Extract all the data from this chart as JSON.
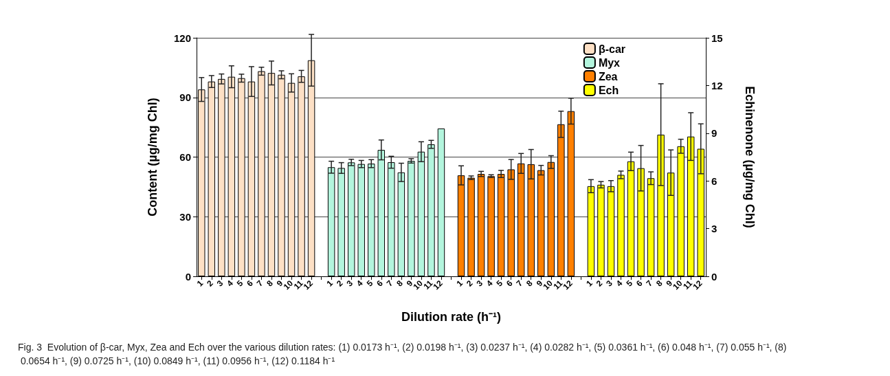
{
  "chart_data": {
    "type": "bar",
    "xlabel": "Dilution rate (h⁻¹)",
    "ylabel": "Content (µg/mg Chl)",
    "y2label": "Echinenone (µg/mg Chl)",
    "categories": [
      "1",
      "2",
      "3",
      "4",
      "5",
      "6",
      "7",
      "8",
      "9",
      "10",
      "11",
      "12",
      null,
      "1",
      "2",
      "3",
      "4",
      "5",
      "6",
      "7",
      "8",
      "9",
      "10",
      "11",
      "12",
      null,
      "1",
      "2",
      "3",
      "4",
      "5",
      "6",
      "7",
      "8",
      "9",
      "10",
      "11",
      "12",
      null,
      "1",
      "2",
      "3",
      "4",
      "5",
      "6",
      "7",
      "8",
      "9",
      "10",
      "11",
      "12"
    ],
    "series": [
      {
        "name": "β-car",
        "color": "#fde0c5",
        "values": [
          94,
          98,
          99.3,
          100.4,
          99.7,
          98,
          103.2,
          102.3,
          101.4,
          97.3,
          100.6,
          108.7,
          null,
          null,
          null,
          null,
          null,
          null,
          null,
          null,
          null,
          null,
          null,
          null,
          null,
          null,
          null,
          null,
          null,
          null,
          null,
          null,
          null,
          null,
          null,
          null,
          null,
          null,
          null,
          null,
          null,
          null,
          null,
          null,
          null,
          null,
          null,
          null,
          null,
          null,
          null
        ],
        "errors": [
          6,
          3,
          2.5,
          5.5,
          2,
          7.5,
          2,
          6,
          2,
          4.6,
          3,
          13,
          null,
          null,
          null,
          null,
          null,
          null,
          null,
          null,
          null,
          null,
          null,
          null,
          null,
          null,
          null,
          null,
          null,
          null,
          null,
          null,
          null,
          null,
          null,
          null,
          null,
          null,
          null,
          null,
          null,
          null,
          null,
          null,
          null,
          null,
          null,
          null,
          null,
          null,
          null
        ]
      },
      {
        "name": "Myx",
        "color": "#b3f5dd",
        "values": [
          null,
          null,
          null,
          null,
          null,
          null,
          null,
          null,
          null,
          null,
          null,
          null,
          null,
          54.9,
          54.5,
          57.3,
          56.5,
          56.7,
          63.6,
          57.4,
          52.3,
          58.1,
          62.7,
          66.4,
          74.4,
          null,
          null,
          null,
          null,
          null,
          null,
          null,
          null,
          null,
          null,
          null,
          null,
          null,
          null,
          null,
          null,
          null,
          null,
          null,
          null,
          null,
          null,
          null,
          null,
          null,
          null
        ],
        "errors": [
          null,
          null,
          null,
          null,
          null,
          null,
          null,
          null,
          null,
          null,
          null,
          null,
          null,
          3,
          2.7,
          1.6,
          1.8,
          2,
          5,
          3,
          4.6,
          1.1,
          5,
          2,
          null,
          null,
          null,
          null,
          null,
          null,
          null,
          null,
          null,
          null,
          null,
          null,
          null,
          null,
          null,
          null,
          null,
          null,
          null,
          null,
          null,
          null,
          null,
          null,
          null,
          null,
          null
        ]
      },
      {
        "name": "Zea",
        "color": "#ff8000",
        "values": [
          null,
          null,
          null,
          null,
          null,
          null,
          null,
          null,
          null,
          null,
          null,
          null,
          null,
          null,
          null,
          null,
          null,
          null,
          null,
          null,
          null,
          null,
          null,
          null,
          null,
          null,
          50.8,
          49.6,
          51.5,
          50.4,
          51.5,
          53.8,
          56.8,
          56.4,
          53.4,
          57.5,
          76.5,
          83.1,
          null,
          null,
          null,
          null,
          null,
          null,
          null,
          null,
          null,
          null,
          null,
          null,
          null
        ],
        "errors": [
          null,
          null,
          null,
          null,
          null,
          null,
          null,
          null,
          null,
          null,
          null,
          null,
          null,
          null,
          null,
          null,
          null,
          null,
          null,
          null,
          null,
          null,
          null,
          null,
          null,
          null,
          4.8,
          0.9,
          1.3,
          0.7,
          1.8,
          5,
          5,
          7.4,
          2.4,
          3.2,
          6.6,
          6.5,
          null,
          null,
          null,
          null,
          null,
          null,
          null,
          null,
          null,
          null,
          null,
          null,
          null
        ]
      },
      {
        "name": "Ech",
        "color": "#ffff00",
        "axis": "y2",
        "values": [
          null,
          null,
          null,
          null,
          null,
          null,
          null,
          null,
          null,
          null,
          null,
          null,
          null,
          null,
          null,
          null,
          null,
          null,
          null,
          null,
          null,
          null,
          null,
          null,
          null,
          null,
          null,
          null,
          null,
          null,
          null,
          null,
          null,
          null,
          null,
          null,
          null,
          null,
          null,
          5.67,
          5.76,
          5.67,
          6.38,
          7.23,
          6.8,
          6.17,
          8.91,
          6.52,
          8.18,
          8.79,
          8.02
        ],
        "errors": [
          null,
          null,
          null,
          null,
          null,
          null,
          null,
          null,
          null,
          null,
          null,
          null,
          null,
          null,
          null,
          null,
          null,
          null,
          null,
          null,
          null,
          null,
          null,
          null,
          null,
          null,
          null,
          null,
          null,
          null,
          null,
          null,
          null,
          null,
          null,
          null,
          null,
          null,
          null,
          0.41,
          0.2,
          0.35,
          0.24,
          0.58,
          1.43,
          0.4,
          3.2,
          1.43,
          0.44,
          1.5,
          1.57
        ]
      }
    ],
    "ylim": [
      0,
      120
    ],
    "yticks": [
      0,
      30,
      60,
      90,
      120
    ],
    "y2lim": [
      0,
      15
    ],
    "y2ticks": [
      0,
      3,
      6,
      9,
      12,
      15
    ],
    "grid": "y",
    "legend": "top right",
    "annotations": [
      "Fig. 3  Evolution of β-car, Myx, Zea and Ech over the various dilution rates: (1) 0.0173 h⁻¹, (2) 0.0198 h⁻¹, (3) 0.0237 h⁻¹, (4) 0.0282 h⁻¹, (5) 0.0361 h⁻¹, (6) 0.048 h⁻¹, (7) 0.055 h⁻¹, (8) 0.0654 h⁻¹, (9) 0.0725 h⁻¹, (10) 0.0849 h⁻¹, (11) 0.0956 h⁻¹, (12) 0.1184 h⁻¹"
    ]
  }
}
